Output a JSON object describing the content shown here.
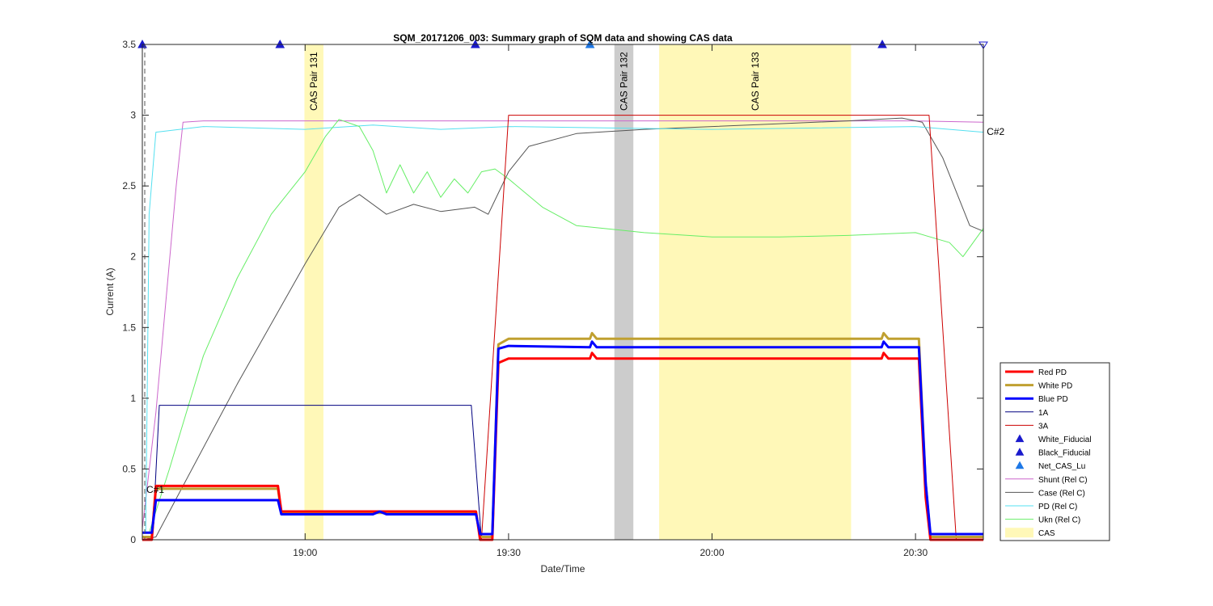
{
  "chart_data": {
    "type": "line",
    "title": "SQM_20171206_003: Summary graph of SQM data and showing CAS data",
    "xlabel": "Date/Time",
    "ylabel": "Current (A)",
    "xlim": [
      "18:36",
      "20:40"
    ],
    "ylim": [
      0,
      3.5
    ],
    "grid": false,
    "legend_position": "lower-right outside",
    "x_ticks": [
      "19:00",
      "19:30",
      "20:00",
      "20:30"
    ],
    "y_ticks": [
      "0",
      "0.5",
      "1",
      "1.5",
      "2",
      "2.5",
      "3",
      "3.5"
    ],
    "cas_bands": [
      {
        "label": "CAS Pair 131",
        "start": "18:59.9",
        "end": "19:02.7",
        "color": "#fff8b8"
      },
      {
        "label": "CAS Pair 132",
        "start": "19:45.6",
        "end": "19:48.4",
        "color": "#cccccc"
      },
      {
        "label": "CAS Pair 133",
        "start": "19:52.2",
        "end": "20:20.5",
        "color": "#fff8b8"
      }
    ],
    "markers": [
      {
        "series": "White_Fiducial",
        "x": "18:36",
        "y": 3.5
      },
      {
        "series": "Black_Fiducial",
        "x": "18:56.3",
        "y": 3.5
      },
      {
        "series": "White_Fiducial",
        "x": "19:25.1",
        "y": 3.5
      },
      {
        "series": "Net_CAS_Lu",
        "x": "19:42.0",
        "y": 3.5
      },
      {
        "series": "Black_Fiducial",
        "x": "20:25.1",
        "y": 3.5
      }
    ],
    "annotations": [
      {
        "text": "C#1",
        "x": "18:36.6",
        "y": 0.33
      },
      {
        "text": "C#2",
        "x": "20:40.5",
        "y": 2.86
      }
    ],
    "series": [
      {
        "name": "Shunt (Rel C)",
        "color": "#cc66cc",
        "width": 1,
        "x": [
          "18:36",
          "18:38",
          "18:41",
          "18:42",
          "18:45",
          "19:00",
          "19:30",
          "20:00",
          "20:30",
          "20:40"
        ],
        "y": [
          0.08,
          0.9,
          2.5,
          2.95,
          2.96,
          2.96,
          2.96,
          2.96,
          2.96,
          2.95
        ]
      },
      {
        "name": "Case (Rel C)",
        "color": "#555555",
        "width": 1,
        "x": [
          "18:36",
          "18:38",
          "18:40",
          "18:50",
          "19:00",
          "19:05",
          "19:08",
          "19:12",
          "19:16",
          "19:20",
          "19:25",
          "19:27",
          "19:30",
          "19:33",
          "19:40",
          "19:50",
          "20:00",
          "20:10",
          "20:20",
          "20:28",
          "20:31",
          "20:34",
          "20:38",
          "20:40"
        ],
        "y": [
          0,
          0.02,
          0.2,
          1.1,
          1.95,
          2.35,
          2.44,
          2.3,
          2.37,
          2.32,
          2.35,
          2.3,
          2.6,
          2.78,
          2.87,
          2.9,
          2.92,
          2.94,
          2.96,
          2.98,
          2.95,
          2.7,
          2.22,
          2.18
        ]
      },
      {
        "name": "PD (Rel C)",
        "color": "#55e0f0",
        "width": 1,
        "x": [
          "18:36",
          "18:36.5",
          "18:37",
          "18:38",
          "18:45",
          "19:00",
          "19:10",
          "19:20",
          "19:30",
          "20:00",
          "20:30",
          "20:40"
        ],
        "y": [
          0.05,
          0.05,
          2.3,
          2.88,
          2.92,
          2.9,
          2.93,
          2.9,
          2.92,
          2.9,
          2.92,
          2.88
        ]
      },
      {
        "name": "Ukn (Rel C)",
        "color": "#66ee66",
        "width": 1,
        "x": [
          "18:36",
          "18:37",
          "18:40",
          "18:45",
          "18:50",
          "18:55",
          "19:00",
          "19:03",
          "19:05",
          "19:08",
          "19:10",
          "19:12",
          "19:14",
          "19:16",
          "19:18",
          "19:20",
          "19:22",
          "19:24",
          "19:26",
          "19:28",
          "19:30",
          "19:35",
          "19:40",
          "19:50",
          "20:00",
          "20:10",
          "20:20",
          "20:30",
          "20:35",
          "20:37",
          "20:40"
        ],
        "y": [
          0.05,
          0.05,
          0.5,
          1.3,
          1.85,
          2.3,
          2.6,
          2.85,
          2.97,
          2.92,
          2.75,
          2.45,
          2.65,
          2.45,
          2.6,
          2.42,
          2.55,
          2.45,
          2.6,
          2.62,
          2.55,
          2.35,
          2.22,
          2.17,
          2.14,
          2.14,
          2.15,
          2.17,
          2.1,
          2.0,
          2.2
        ]
      },
      {
        "name": "1A",
        "color": "#000080",
        "width": 1,
        "x": [
          "18:36",
          "18:37.5",
          "18:38.5",
          "19:24.5",
          "19:26",
          "20:40"
        ],
        "y": [
          0,
          0,
          0.95,
          0.95,
          0,
          0
        ]
      },
      {
        "name": "3A",
        "color": "#cc0000",
        "width": 1,
        "x": [
          "18:36",
          "19:26",
          "19:30",
          "20:32",
          "20:36",
          "20:40"
        ],
        "y": [
          0,
          0,
          3.0,
          3.0,
          0,
          0
        ]
      },
      {
        "name": "White PD",
        "color": "#c0a030",
        "width": 3,
        "x": [
          "18:36",
          "18:37.4",
          "18:38",
          "18:56",
          "18:56.5",
          "19:25.2",
          "19:25.8",
          "19:27.6",
          "19:28.5",
          "19:30",
          "19:42",
          "19:42.3",
          "19:43",
          "20:25",
          "20:25.3",
          "20:26",
          "20:30.5",
          "20:31.5",
          "20:32.2",
          "20:40"
        ],
        "y": [
          0.02,
          0.02,
          0.36,
          0.36,
          0.19,
          0.19,
          0.02,
          0.02,
          1.38,
          1.42,
          1.42,
          1.46,
          1.42,
          1.42,
          1.46,
          1.42,
          1.42,
          0.4,
          0.02,
          0.02
        ]
      },
      {
        "name": "Red PD",
        "color": "#ff0000",
        "width": 3,
        "x": [
          "18:36",
          "18:37.4",
          "18:38",
          "18:56",
          "18:56.5",
          "19:25.2",
          "19:25.8",
          "19:27.6",
          "19:28.5",
          "19:30",
          "19:42",
          "19:42.3",
          "19:43",
          "20:25",
          "20:25.3",
          "20:26",
          "20:30.5",
          "20:31.5",
          "20:32.2",
          "20:40"
        ],
        "y": [
          0,
          0,
          0.38,
          0.38,
          0.2,
          0.2,
          0,
          0,
          1.25,
          1.28,
          1.28,
          1.32,
          1.28,
          1.28,
          1.32,
          1.28,
          1.28,
          0.3,
          0,
          0
        ]
      },
      {
        "name": "Blue PD",
        "color": "#0000ff",
        "width": 3,
        "x": [
          "18:36",
          "18:37.4",
          "18:38",
          "18:56",
          "18:56.5",
          "19:10",
          "19:11",
          "19:12",
          "19:25.2",
          "19:25.8",
          "19:27.6",
          "19:28.5",
          "19:30",
          "19:42",
          "19:42.3",
          "19:43",
          "20:25",
          "20:25.3",
          "20:26",
          "20:30.5",
          "20:31.5",
          "20:32.2",
          "20:40"
        ],
        "y": [
          0.05,
          0.05,
          0.28,
          0.28,
          0.18,
          0.18,
          0.2,
          0.18,
          0.18,
          0.04,
          0.04,
          1.35,
          1.37,
          1.36,
          1.4,
          1.36,
          1.36,
          1.4,
          1.36,
          1.36,
          0.4,
          0.04,
          0.04
        ]
      }
    ],
    "legend": [
      {
        "label": "Red PD",
        "kind": "line",
        "color": "#ff0000",
        "width": 3
      },
      {
        "label": "White PD",
        "kind": "line",
        "color": "#c0a030",
        "width": 3
      },
      {
        "label": "Blue PD",
        "kind": "line",
        "color": "#0000ff",
        "width": 3
      },
      {
        "label": "1A",
        "kind": "line",
        "color": "#000080",
        "width": 1
      },
      {
        "label": "3A",
        "kind": "line",
        "color": "#cc0000",
        "width": 1
      },
      {
        "label": "White_Fiducial",
        "kind": "marker",
        "color": "#1a1acc"
      },
      {
        "label": "Black_Fiducial",
        "kind": "marker",
        "color": "#1a1acc"
      },
      {
        "label": "Net_CAS_Lu",
        "kind": "marker",
        "color": "#1e78e6"
      },
      {
        "label": "Shunt (Rel C)",
        "kind": "line",
        "color": "#cc66cc",
        "width": 1
      },
      {
        "label": "Case (Rel C)",
        "kind": "line",
        "color": "#555555",
        "width": 1
      },
      {
        "label": "PD (Rel C)",
        "kind": "line",
        "color": "#55e0f0",
        "width": 1
      },
      {
        "label": "Ukn (Rel C)",
        "kind": "line",
        "color": "#66ee66",
        "width": 1
      },
      {
        "label": "CAS",
        "kind": "patch",
        "color": "#fff8b8"
      }
    ]
  }
}
